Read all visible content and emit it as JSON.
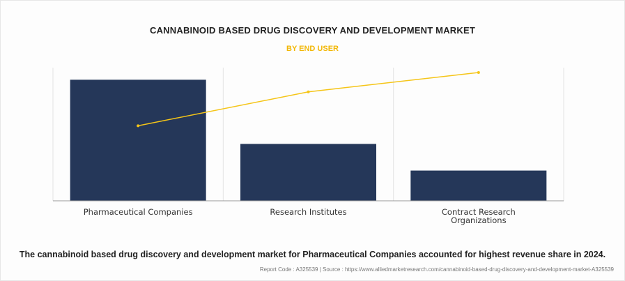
{
  "title": "CANNABINOID BASED DRUG DISCOVERY AND DEVELOPMENT MARKET",
  "subtitle": "BY END USER",
  "caption": "The cannabinoid based drug discovery and development market for Pharmaceutical Companies accounted for highest revenue share in 2024.",
  "source": "Report Code : A325539  |  Source : https://www.alliedmarketresearch.com/cannabinoid-based-drug-discovery-and-development-market-A325539",
  "colors": {
    "bar": "#253759",
    "line": "#f5c518",
    "grid": "#e4e4e4",
    "axis": "#999999"
  },
  "chart_data": {
    "type": "bar",
    "categories": [
      [
        "Pharmaceutical Companies"
      ],
      [
        "Research Institutes"
      ],
      [
        "Contract Research",
        "Organizations"
      ]
    ],
    "series": [
      {
        "type": "bar",
        "values": [
          100,
          47,
          25
        ]
      },
      {
        "type": "line",
        "values": [
          62,
          90,
          106
        ]
      }
    ],
    "ylim": [
      0,
      110
    ],
    "grid": "vertical",
    "legend": "none"
  }
}
